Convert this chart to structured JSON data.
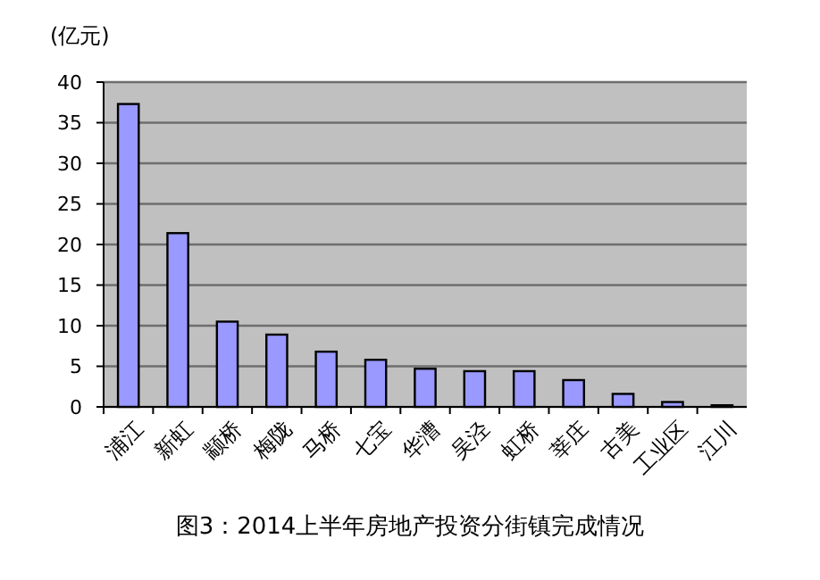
{
  "chart_data": {
    "type": "bar",
    "title": "图3：2014上半年房地产投资分街镇完成情况",
    "ylabel": "(亿元)",
    "categories": [
      "浦江",
      "新虹",
      "颛桥",
      "梅陇",
      "马桥",
      "七宝",
      "华漕",
      "吴泾",
      "虹桥",
      "莘庄",
      "古美",
      "工业区",
      "江川"
    ],
    "values": [
      37.3,
      21.4,
      10.5,
      8.9,
      6.8,
      5.8,
      4.7,
      4.4,
      4.4,
      3.3,
      1.6,
      0.6,
      0.2
    ],
    "color": "#9999ff",
    "ylim": [
      0,
      40
    ],
    "yticks": [
      0,
      5,
      10,
      15,
      20,
      25,
      30,
      35,
      40
    ],
    "grid": "y"
  }
}
